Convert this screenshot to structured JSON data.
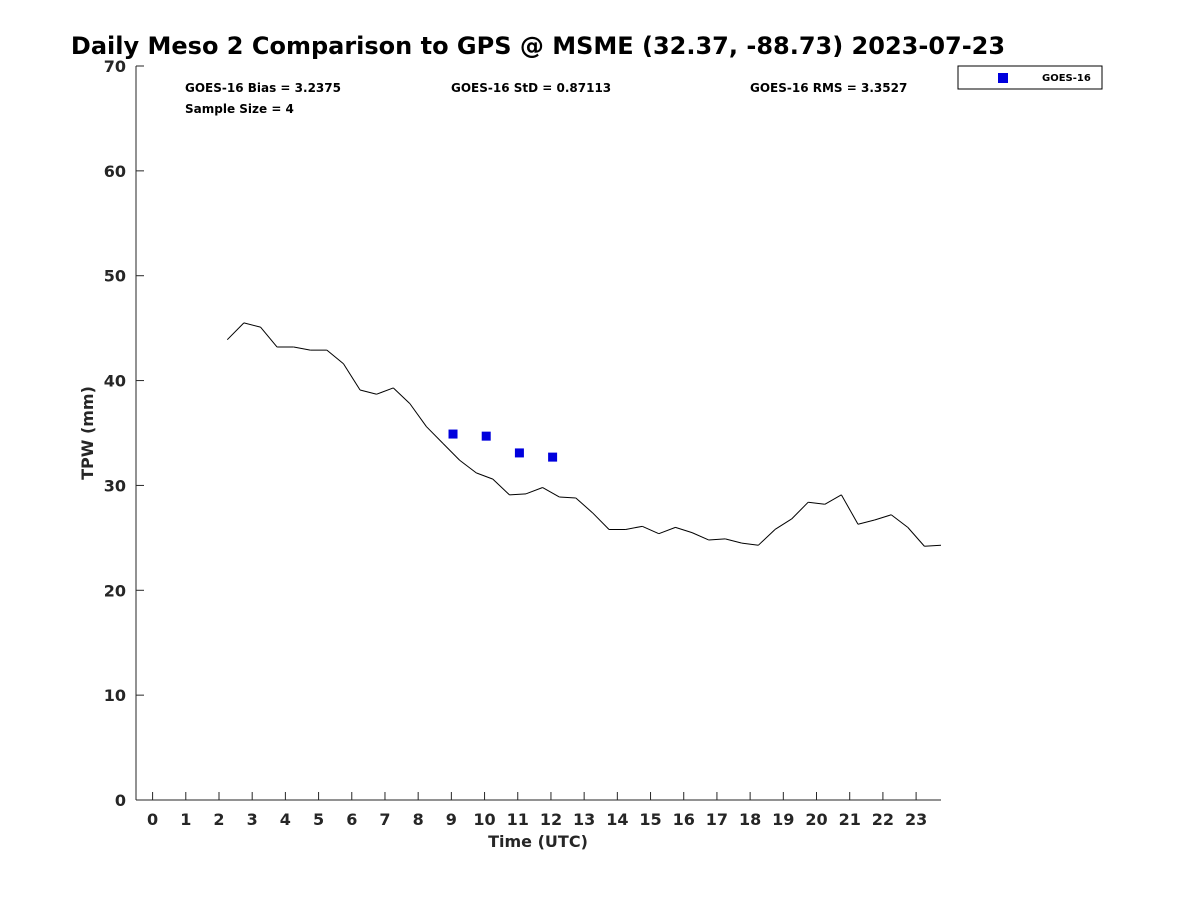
{
  "chart_data": {
    "type": "line",
    "title": "Daily Meso 2 Comparison to GPS @ MSME (32.37, -88.73) 2023-07-23",
    "xlabel": "Time (UTC)",
    "ylabel": "TPW (mm)",
    "xlim": [
      -0.5,
      23.75
    ],
    "ylim": [
      0,
      70
    ],
    "x_ticks": [
      0,
      1,
      2,
      3,
      4,
      5,
      6,
      7,
      8,
      9,
      10,
      11,
      12,
      13,
      14,
      15,
      16,
      17,
      18,
      19,
      20,
      21,
      22,
      23
    ],
    "y_ticks": [
      0,
      10,
      20,
      30,
      40,
      50,
      60,
      70
    ],
    "grid": false,
    "legend_position": "top-right, outside plot",
    "stats": {
      "bias": "GOES-16 Bias = 3.2375",
      "std": "GOES-16 StD = 0.87113",
      "rms": "GOES-16 RMS = 3.3527",
      "sample": "Sample Size = 4"
    },
    "series": [
      {
        "kind": "line",
        "color": "#000000",
        "x": [
          2.25,
          2.75,
          3.25,
          3.75,
          4.25,
          4.75,
          5.25,
          5.75,
          6.25,
          6.75,
          7.25,
          7.75,
          8.25,
          8.75,
          9.25,
          9.75,
          10.25,
          10.75,
          11.25,
          11.75,
          12.25,
          12.75,
          13.25,
          13.75,
          14.25,
          14.75,
          15.25,
          15.75,
          16.25,
          16.75,
          17.25,
          17.75,
          18.25,
          18.75,
          19.25,
          19.75,
          20.25,
          20.75,
          21.25,
          21.75,
          22.25,
          22.75,
          23.25,
          23.75
        ],
        "values": [
          43.9,
          45.5,
          45.1,
          43.2,
          43.2,
          42.9,
          42.9,
          41.6,
          39.1,
          38.7,
          39.3,
          37.8,
          35.6,
          34.0,
          32.4,
          31.2,
          30.6,
          29.1,
          29.2,
          29.8,
          28.9,
          28.8,
          27.4,
          25.8,
          25.8,
          26.1,
          25.4,
          26.0,
          25.5,
          24.8,
          24.9,
          24.5,
          24.3,
          25.8,
          26.8,
          28.4,
          28.2,
          29.1,
          26.3,
          26.7,
          27.2,
          26.0,
          24.2,
          24.3
        ]
      },
      {
        "name": "GOES-16",
        "kind": "scatter",
        "color": "#0000dd",
        "x": [
          9.05,
          10.05,
          11.05,
          12.05
        ],
        "values": [
          34.9,
          34.7,
          33.1,
          32.7
        ]
      }
    ]
  }
}
